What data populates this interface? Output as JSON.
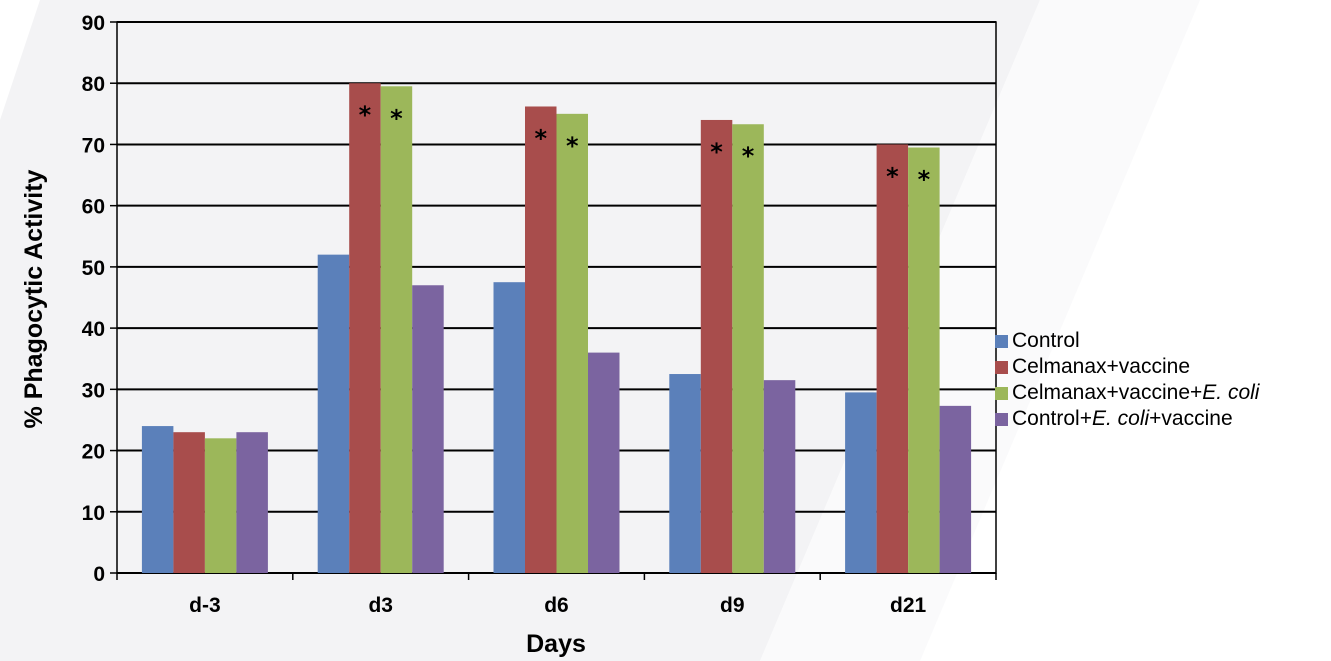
{
  "colors": {
    "background_decor": "#f2f2f4",
    "grid": "#000000"
  },
  "chart_data": {
    "type": "bar",
    "xlabel": "Days",
    "ylabel": "% Phagocytic Activity",
    "ylim": [
      0,
      90
    ],
    "yticks": [
      "0",
      "10",
      "20",
      "30",
      "40",
      "50",
      "60",
      "70",
      "80",
      "90"
    ],
    "grid": true,
    "legend_position": "right",
    "categories": [
      "d-3",
      "d3",
      "d6",
      "d9",
      "d21"
    ],
    "series": [
      {
        "name": "Control",
        "legend_parts": [
          {
            "text": "Control",
            "italic": false
          }
        ],
        "color": "#5b80ba",
        "values": [
          24,
          52,
          47.5,
          32.5,
          29.5
        ],
        "markers": [
          "",
          "",
          "",
          "",
          ""
        ]
      },
      {
        "name": "Celmanax+vaccine",
        "legend_parts": [
          {
            "text": "Celmanax+vaccine",
            "italic": false
          }
        ],
        "color": "#a84d4c",
        "values": [
          23,
          80,
          76.2,
          74,
          70
        ],
        "markers": [
          "",
          "*",
          "*",
          "*",
          "*"
        ]
      },
      {
        "name": "Celmanax+vaccine+E. coli",
        "legend_parts": [
          {
            "text": "Celmanax+vaccine+",
            "italic": false
          },
          {
            "text": "E. coli",
            "italic": true
          }
        ],
        "color": "#9cb75a",
        "values": [
          22,
          79.5,
          75,
          73.3,
          69.5
        ],
        "markers": [
          "",
          "*",
          "*",
          "*",
          "*"
        ]
      },
      {
        "name": "Control+E. coli+vaccine",
        "legend_parts": [
          {
            "text": "Control+",
            "italic": false
          },
          {
            "text": "E. coli",
            "italic": true
          },
          {
            "text": "+vaccine",
            "italic": false
          }
        ],
        "color": "#7b64a0",
        "values": [
          23,
          47,
          36,
          31.5,
          27.3
        ],
        "markers": [
          "",
          "",
          "",
          "",
          ""
        ]
      }
    ]
  }
}
